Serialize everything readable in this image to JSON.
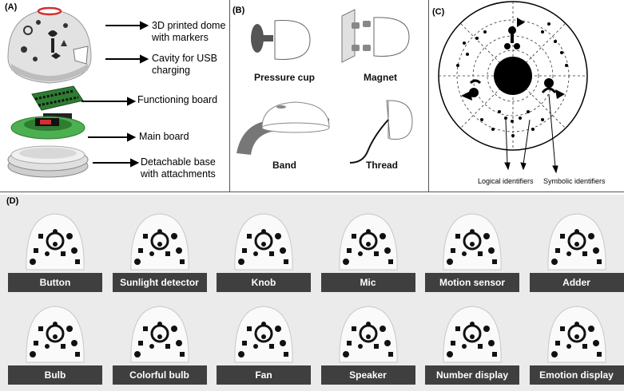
{
  "panels": {
    "a": {
      "label": "(A)",
      "callouts": {
        "dome": [
          "3D printed dome",
          "with markers"
        ],
        "cavity": [
          "Cavity for USB",
          "charging"
        ],
        "functioning": "Functioning board",
        "main": "Main board",
        "base": [
          "Detachable base",
          "with attachments"
        ]
      }
    },
    "b": {
      "label": "(B)",
      "attachments": [
        "Pressure cup",
        "Magnet",
        "Band",
        "Thread"
      ]
    },
    "c": {
      "label": "(C)",
      "identifiers": [
        "Logical identifiers",
        "Symbolic identifiers"
      ]
    },
    "d": {
      "label": "(D)",
      "modules": [
        "Button",
        "Sunlight detector",
        "Knob",
        "Mic",
        "Motion sensor",
        "Adder",
        "Bulb",
        "Colorful bulb",
        "Fan",
        "Speaker",
        "Number display",
        "Emotion display"
      ]
    }
  },
  "colors": {
    "label_bar": "#3f3f3f",
    "board_green": "#2e7d32",
    "base_green": "#4caf50",
    "accent_red": "#d32f2f"
  },
  "icons": [
    "arrow-icon",
    "dome-icon",
    "board-icon",
    "base-icon",
    "marker-icon"
  ]
}
